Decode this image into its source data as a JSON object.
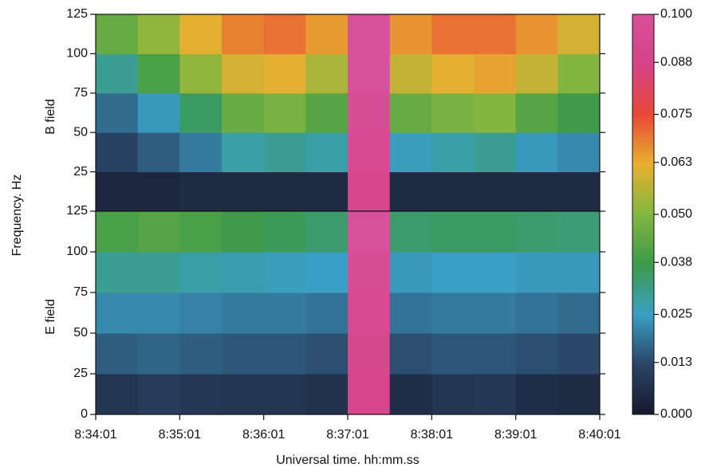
{
  "chart_data": {
    "type": "heatmap",
    "xlabel": "Universal time. hh:mm.ss",
    "ylabel": "Frequency. Hz",
    "xticks": [
      "8:34:01",
      "8:35:01",
      "8:36:01",
      "8:37:01",
      "8:38:01",
      "8:39:01",
      "8:40:01"
    ],
    "panels": [
      {
        "name": "B field",
        "ylim": [
          0,
          125
        ],
        "yticks": [
          25,
          50,
          75,
          100,
          125
        ],
        "ybins": [
          0,
          25,
          50,
          75,
          100,
          125
        ],
        "values": [
          [
            0.004,
            0.004,
            0.005,
            0.005,
            0.005,
            0.005,
            0.09,
            0.005,
            0.005,
            0.005,
            0.005,
            0.005
          ],
          [
            0.012,
            0.016,
            0.02,
            0.028,
            0.03,
            0.028,
            0.095,
            0.026,
            0.028,
            0.03,
            0.024,
            0.022
          ],
          [
            0.018,
            0.024,
            0.035,
            0.045,
            0.048,
            0.042,
            0.098,
            0.045,
            0.048,
            0.05,
            0.042,
            0.038
          ],
          [
            0.03,
            0.04,
            0.052,
            0.06,
            0.062,
            0.055,
            0.1,
            0.058,
            0.062,
            0.064,
            0.058,
            0.05
          ],
          [
            0.045,
            0.052,
            0.062,
            0.068,
            0.07,
            0.065,
            0.1,
            0.066,
            0.07,
            0.07,
            0.066,
            0.06
          ]
        ]
      },
      {
        "name": "E field",
        "ylim": [
          0,
          125
        ],
        "yticks": [
          0,
          25,
          50,
          75,
          100,
          125
        ],
        "ybins": [
          0,
          25,
          50,
          75,
          100,
          125
        ],
        "values": [
          [
            0.008,
            0.01,
            0.009,
            0.008,
            0.008,
            0.007,
            0.09,
            0.006,
            0.008,
            0.009,
            0.006,
            0.005
          ],
          [
            0.016,
            0.017,
            0.016,
            0.015,
            0.015,
            0.014,
            0.092,
            0.014,
            0.015,
            0.015,
            0.014,
            0.013
          ],
          [
            0.022,
            0.022,
            0.021,
            0.02,
            0.02,
            0.019,
            0.095,
            0.019,
            0.02,
            0.02,
            0.019,
            0.018
          ],
          [
            0.03,
            0.03,
            0.028,
            0.027,
            0.026,
            0.025,
            0.097,
            0.024,
            0.025,
            0.025,
            0.024,
            0.024
          ],
          [
            0.04,
            0.042,
            0.04,
            0.038,
            0.036,
            0.034,
            0.1,
            0.034,
            0.035,
            0.035,
            0.034,
            0.033
          ]
        ]
      }
    ],
    "colorbar": {
      "lim": [
        0,
        0.1
      ],
      "ticks": [
        {
          "value": 0,
          "label": "0.000"
        },
        0.013,
        0.025,
        0.038,
        {
          "value": 0.05,
          "label": "0.050"
        },
        0.063,
        0.075,
        0.088,
        {
          "value": 0.1,
          "label": "0.100"
        }
      ],
      "colors": [
        "#151a2c",
        "#2a4466",
        "#3a9fc4",
        "#3c9a4a",
        "#82b640",
        "#e8b030",
        "#e84836",
        "#d44488",
        "#d8509a"
      ]
    }
  }
}
